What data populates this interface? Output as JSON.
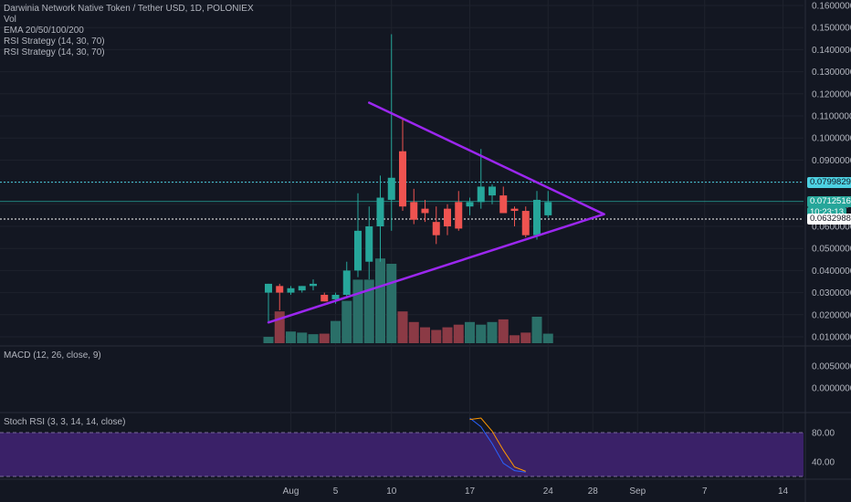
{
  "legend": {
    "symbol": "Darwinia Network Native Token / Tether USD, 1D, POLONIEX",
    "indicators": [
      "Vol",
      "EMA 20/50/100/200",
      "RSI Strategy (14, 30, 70)",
      "RSI Strategy (14, 30, 70)"
    ]
  },
  "macd": {
    "title": "MACD (12, 26, close, 9)"
  },
  "stoch": {
    "title": "Stoch RSI (3, 3, 14, 14, close)"
  },
  "price_tags": [
    {
      "label": "0.07998296",
      "value": 0.07998296,
      "color": "#4dd0e1",
      "text_color": "#131722"
    },
    {
      "label": "0.07125168",
      "value": 0.07125168,
      "color": "#26a69a",
      "text_color": "#ffffff"
    },
    {
      "label": "10:23:13",
      "value": 0.0661,
      "color": "#26a69a",
      "text_color": "#ffffff"
    },
    {
      "label": "0.06329884",
      "value": 0.06329884,
      "color": "#ffffff",
      "text_color": "#131722"
    }
  ],
  "colors": {
    "up": "#26a69a",
    "down": "#ef5350",
    "vol_up": "#2a6f68",
    "vol_down": "#8b3a45",
    "trend": "#9c27f0",
    "stoch_fill": "#3a2168"
  },
  "chart_data": {
    "type": "candlestick",
    "price_axis": {
      "ylim": [
        0.005,
        0.163
      ],
      "ticks": [
        "0.16000000",
        "0.15000000",
        "0.14000000",
        "0.13000000",
        "0.12000000",
        "0.11000000",
        "0.10000000",
        "0.09000000",
        "0.08000000",
        "0.07000000",
        "0.06000000",
        "0.05000000",
        "0.04000000",
        "0.03000000",
        "0.02000000",
        "0.01000000"
      ]
    },
    "macd_axis": {
      "ticks": [
        "0.00500000",
        "0.00000000"
      ]
    },
    "stoch_axis": {
      "ticks": [
        "80.00",
        "40.00"
      ]
    },
    "x_ticks": [
      {
        "label": "Aug",
        "day": 1
      },
      {
        "label": "5",
        "day": 5
      },
      {
        "label": "10",
        "day": 10
      },
      {
        "label": "17",
        "day": 17
      },
      {
        "label": "24",
        "day": 24
      },
      {
        "label": "28",
        "day": 28
      },
      {
        "label": "Sep",
        "day": 32
      },
      {
        "label": "7",
        "day": 38
      },
      {
        "label": "14",
        "day": 45
      }
    ],
    "candles": [
      {
        "day": -1,
        "o": 0.03,
        "h": 0.034,
        "l": 0.017,
        "c": 0.034
      },
      {
        "day": 0,
        "o": 0.033,
        "h": 0.034,
        "l": 0.022,
        "c": 0.03
      },
      {
        "day": 1,
        "o": 0.03,
        "h": 0.033,
        "l": 0.029,
        "c": 0.032
      },
      {
        "day": 2,
        "o": 0.031,
        "h": 0.033,
        "l": 0.03,
        "c": 0.033
      },
      {
        "day": 3,
        "o": 0.033,
        "h": 0.036,
        "l": 0.031,
        "c": 0.034
      },
      {
        "day": 4,
        "o": 0.029,
        "h": 0.03,
        "l": 0.026,
        "c": 0.026
      },
      {
        "day": 5,
        "o": 0.027,
        "h": 0.03,
        "l": 0.025,
        "c": 0.029
      },
      {
        "day": 6,
        "o": 0.029,
        "h": 0.044,
        "l": 0.028,
        "c": 0.04
      },
      {
        "day": 7,
        "o": 0.04,
        "h": 0.075,
        "l": 0.037,
        "c": 0.058
      },
      {
        "day": 8,
        "o": 0.044,
        "h": 0.069,
        "l": 0.036,
        "c": 0.06
      },
      {
        "day": 9,
        "o": 0.06,
        "h": 0.083,
        "l": 0.044,
        "c": 0.073
      },
      {
        "day": 10,
        "o": 0.072,
        "h": 0.147,
        "l": 0.058,
        "c": 0.082
      },
      {
        "day": 11,
        "o": 0.094,
        "h": 0.109,
        "l": 0.067,
        "c": 0.069
      },
      {
        "day": 12,
        "o": 0.071,
        "h": 0.077,
        "l": 0.061,
        "c": 0.063
      },
      {
        "day": 13,
        "o": 0.068,
        "h": 0.072,
        "l": 0.062,
        "c": 0.066
      },
      {
        "day": 14,
        "o": 0.062,
        "h": 0.069,
        "l": 0.052,
        "c": 0.056
      },
      {
        "day": 15,
        "o": 0.068,
        "h": 0.07,
        "l": 0.056,
        "c": 0.06
      },
      {
        "day": 16,
        "o": 0.071,
        "h": 0.076,
        "l": 0.058,
        "c": 0.059
      },
      {
        "day": 17,
        "o": 0.069,
        "h": 0.073,
        "l": 0.065,
        "c": 0.071
      },
      {
        "day": 18,
        "o": 0.071,
        "h": 0.095,
        "l": 0.068,
        "c": 0.078
      },
      {
        "day": 19,
        "o": 0.074,
        "h": 0.079,
        "l": 0.07,
        "c": 0.078
      },
      {
        "day": 20,
        "o": 0.074,
        "h": 0.078,
        "l": 0.066,
        "c": 0.066
      },
      {
        "day": 21,
        "o": 0.068,
        "h": 0.069,
        "l": 0.06,
        "c": 0.067
      },
      {
        "day": 22,
        "o": 0.067,
        "h": 0.069,
        "l": 0.055,
        "c": 0.056
      },
      {
        "day": 23,
        "o": 0.056,
        "h": 0.076,
        "l": 0.054,
        "c": 0.072
      },
      {
        "day": 24,
        "o": 0.065,
        "h": 0.076,
        "l": 0.064,
        "c": 0.071
      }
    ],
    "volume": [
      12,
      60,
      22,
      20,
      17,
      18,
      42,
      80,
      120,
      120,
      160,
      150,
      60,
      40,
      30,
      25,
      30,
      35,
      40,
      35,
      40,
      45,
      15,
      20,
      50,
      18
    ],
    "trendlines": [
      {
        "name": "upper",
        "from": {
          "day": 8,
          "price": 0.116
        },
        "to": {
          "day": 29,
          "price": 0.0655
        }
      },
      {
        "name": "lower",
        "from": {
          "day": -1,
          "price": 0.0165
        },
        "to": {
          "day": 29,
          "price": 0.0655
        }
      }
    ],
    "stoch_k": [
      {
        "day": 17,
        "v": 100
      },
      {
        "day": 18,
        "v": 88
      },
      {
        "day": 19,
        "v": 65
      },
      {
        "day": 20,
        "v": 38
      },
      {
        "day": 21,
        "v": 28
      },
      {
        "day": 22,
        "v": 26
      }
    ],
    "stoch_d": [
      {
        "day": 17,
        "v": 98
      },
      {
        "day": 18,
        "v": 100
      },
      {
        "day": 19,
        "v": 82
      },
      {
        "day": 20,
        "v": 56
      },
      {
        "day": 21,
        "v": 33
      },
      {
        "day": 22,
        "v": 27
      }
    ]
  }
}
